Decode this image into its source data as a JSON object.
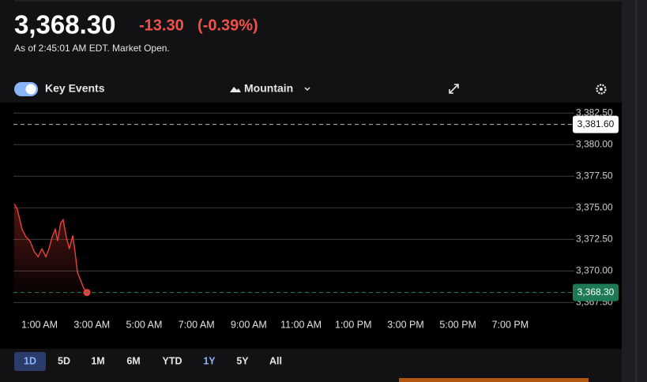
{
  "header": {
    "price": "3,368.30",
    "change": "-13.30",
    "change_pct": "(-0.39%)",
    "as_of": "As of 2:45:01 AM EDT. Market Open."
  },
  "controls": {
    "key_events": "Key Events",
    "chart_style": "Mountain"
  },
  "ranges": [
    "1D",
    "5D",
    "1M",
    "6M",
    "YTD",
    "1Y",
    "5Y",
    "All"
  ],
  "selected_range": "1D",
  "highlighted_range": "1Y",
  "chart_data": {
    "type": "line",
    "x": [
      0.03,
      0.15,
      0.33,
      0.48,
      0.63,
      0.79,
      0.94,
      1.09,
      1.24,
      1.36,
      1.48,
      1.6,
      1.69,
      1.81,
      1.9,
      2.02,
      2.14,
      2.27,
      2.36,
      2.45,
      2.57,
      2.69,
      2.81
    ],
    "values": [
      3375.31,
      3374.88,
      3373.31,
      3372.69,
      3372.38,
      3371.56,
      3371.13,
      3371.75,
      3371.13,
      3371.75,
      3372.69,
      3373.31,
      3372.38,
      3373.81,
      3374.06,
      3372.69,
      3371.75,
      3372.81,
      3371.44,
      3369.88,
      3369.25,
      3368.63,
      3368.3
    ],
    "color": "#e8423c",
    "xlim": [
      0,
      21.36
    ],
    "xticks": [
      {
        "value": 1,
        "label": "1:00 AM"
      },
      {
        "value": 3,
        "label": "3:00 AM"
      },
      {
        "value": 5,
        "label": "5:00 AM"
      },
      {
        "value": 7,
        "label": "7:00 AM"
      },
      {
        "value": 9,
        "label": "9:00 AM"
      },
      {
        "value": 11,
        "label": "11:00 AM"
      },
      {
        "value": 13,
        "label": "1:00 PM"
      },
      {
        "value": 15,
        "label": "3:00 PM"
      },
      {
        "value": 17,
        "label": "5:00 PM"
      },
      {
        "value": 19,
        "label": "7:00 PM"
      }
    ],
    "ylim": [
      3367.4,
      3382.7
    ],
    "yticks": [
      {
        "value": 3367.5,
        "label": "3,367.50"
      },
      {
        "value": 3370,
        "label": "3,370.00"
      },
      {
        "value": 3372.5,
        "label": "3,372.50"
      },
      {
        "value": 3375,
        "label": "3,375.00"
      },
      {
        "value": 3377.5,
        "label": "3,377.50"
      },
      {
        "value": 3380,
        "label": "3,380.00"
      },
      {
        "value": 3382.5,
        "label": "3,382.50"
      }
    ],
    "grid": true,
    "previous_close": {
      "value": 3381.6,
      "label": "3,381.60"
    },
    "last": {
      "value": 3368.3,
      "label": "3,368.30"
    }
  }
}
